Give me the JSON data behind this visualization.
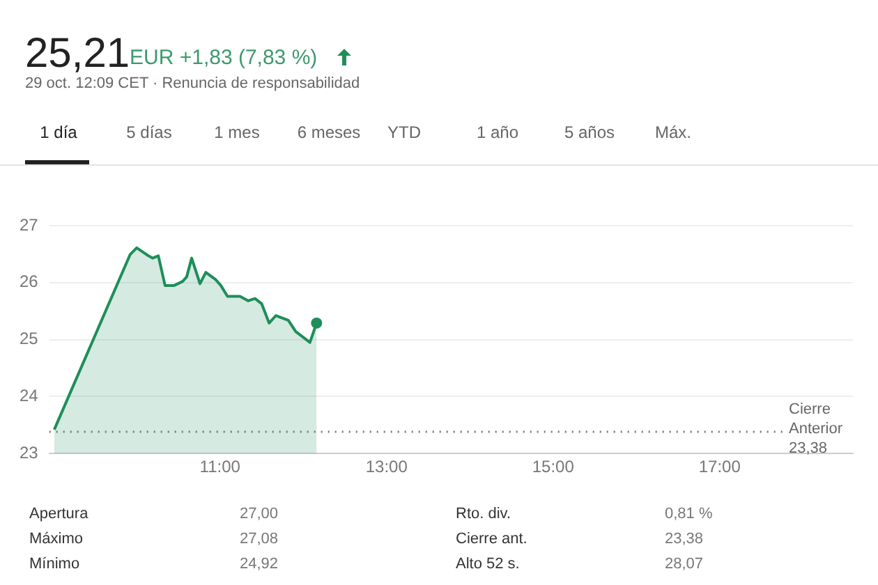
{
  "chart_data": {
    "type": "area",
    "title": "25,21",
    "subtitle": "EUR +1,83 (7,83 %)",
    "annotations": [
      "29 oct. 12:09 CET · Renuncia de responsabilidad",
      "1 día",
      "5 días",
      "1 mes",
      "6 meses",
      "YTD",
      "1 año",
      "5 años",
      "Máx.",
      "Apertura",
      "27,00",
      "Rto. div.",
      "0,81 %",
      "Máximo",
      "27,08",
      "Cierre ant.",
      "23,38",
      "Mínimo",
      "24,92",
      "Alto 52 s.",
      "28,07"
    ],
    "series": [
      {
        "color": "#1e8e5a",
        "x": [
          9.01,
          9.92,
          10.0,
          10.12,
          10.19,
          10.26,
          10.34,
          10.45,
          10.55,
          10.6,
          10.66,
          10.76,
          10.83,
          10.95,
          11.01,
          11.09,
          11.24,
          11.34,
          11.42,
          11.5,
          11.59,
          11.67,
          11.82,
          11.91,
          12.08,
          12.16
        ],
        "values": [
          23.42,
          26.49,
          26.61,
          26.49,
          26.43,
          26.47,
          25.95,
          25.95,
          26.02,
          26.1,
          26.43,
          25.98,
          26.18,
          26.05,
          25.95,
          25.76,
          25.76,
          25.68,
          25.72,
          25.63,
          25.29,
          25.42,
          25.34,
          25.14,
          24.95,
          25.29
        ]
      }
    ],
    "xlim": [
      8.95,
      18.6
    ],
    "xticks": [
      {
        "value": 11,
        "label": "11:00"
      },
      {
        "value": 13,
        "label": "13:00"
      },
      {
        "value": 15,
        "label": "15:00"
      },
      {
        "value": 17,
        "label": "17:00"
      }
    ],
    "ylim": [
      23,
      27
    ],
    "yticks": [
      23,
      24,
      25,
      26,
      27
    ],
    "grid": "y",
    "legend": false,
    "ref_lines": [
      {
        "axis": "y",
        "value": 23.38,
        "label": "Cierre Anterior 23,38",
        "color": "#777777",
        "line_style": "dotted"
      }
    ]
  }
}
